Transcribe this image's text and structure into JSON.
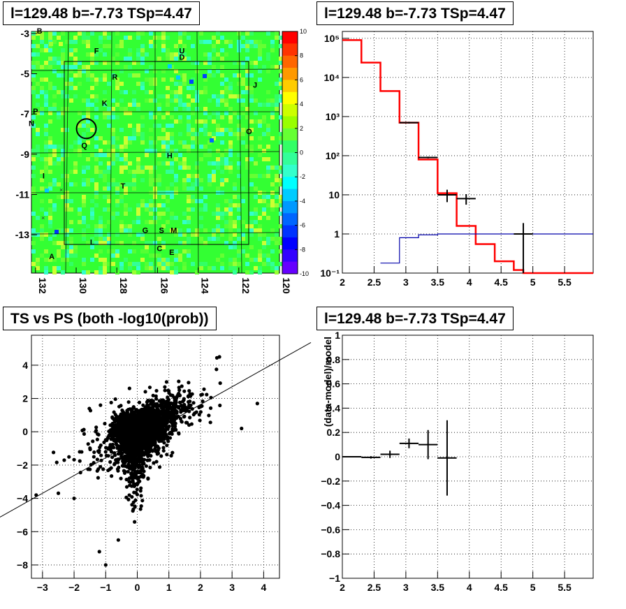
{
  "panels": {
    "skymap_title": "l=129.48 b=-7.73 TSp=4.47",
    "spectrum_title": "l=129.48 b=-7.73 TSp=4.47",
    "scatter_title": "TS vs PS (both -log10(prob))",
    "residual_title": "l=129.48 b=-7.73 TSp=4.47"
  },
  "chart_data": [
    {
      "type": "heatmap",
      "title": "l=129.48 b=-7.73 TSp=4.47",
      "x_ticks": [
        "132",
        "130",
        "128",
        "126",
        "124",
        "122",
        "120"
      ],
      "x_range": [
        132.2,
        120
      ],
      "y_ticks": [
        "-3",
        "-5",
        "-7",
        "-9",
        "-11",
        "-13"
      ],
      "y_range": [
        -14.9,
        -2.9
      ],
      "colorbar_ticks": [
        "10",
        "8",
        "6",
        "4",
        "2",
        "0",
        "-2",
        "-4",
        "-6",
        "-8",
        "-10"
      ],
      "colorbar_range": [
        -10,
        10
      ],
      "colors": {
        "background": "#33ff33",
        "outline": "#000000"
      },
      "source_labels": [
        {
          "text": "B",
          "l": 131.8,
          "b": -3.0
        },
        {
          "text": "F",
          "l": 129.0,
          "b": -4.0
        },
        {
          "text": "U",
          "l": 124.8,
          "b": -4.0
        },
        {
          "text": "D",
          "l": 124.8,
          "b": -4.3
        },
        {
          "text": "R",
          "l": 128.1,
          "b": -5.3
        },
        {
          "text": "J",
          "l": 121.2,
          "b": -5.7
        },
        {
          "text": "K",
          "l": 128.6,
          "b": -6.6
        },
        {
          "text": "P",
          "l": 132.0,
          "b": -7.0
        },
        {
          "text": "N",
          "l": 132.2,
          "b": -7.6
        },
        {
          "text": "O",
          "l": 121.5,
          "b": -8.0
        },
        {
          "text": "Q",
          "l": 129.6,
          "b": -8.7
        },
        {
          "text": "H",
          "l": 125.4,
          "b": -9.2
        },
        {
          "text": "I",
          "l": 131.6,
          "b": -10.2
        },
        {
          "text": "T",
          "l": 127.7,
          "b": -10.7
        },
        {
          "text": "G",
          "l": 126.6,
          "b": -12.9
        },
        {
          "text": "S",
          "l": 125.8,
          "b": -12.9
        },
        {
          "text": "M",
          "l": 125.2,
          "b": -12.9
        },
        {
          "text": "L",
          "l": 129.2,
          "b": -13.5
        },
        {
          "text": "C",
          "l": 125.9,
          "b": -13.8
        },
        {
          "text": "E",
          "l": 125.3,
          "b": -14.0
        },
        {
          "text": "A",
          "l": 131.2,
          "b": -14.2
        }
      ],
      "circle": {
        "l": 129.5,
        "b": -7.73
      }
    },
    {
      "type": "line",
      "title": "l=129.48 b=-7.73 TSp=4.47",
      "x_ticks": [
        "2",
        "2.5",
        "3",
        "3.5",
        "4",
        "4.5",
        "5",
        "5.5"
      ],
      "x_range": [
        2,
        5.95
      ],
      "y_scale": "log",
      "y_ticks": [
        "10⁵",
        "10⁴",
        "10³",
        "10²",
        "10",
        "1",
        "10⁻¹"
      ],
      "y_range": [
        0.1,
        150000
      ],
      "grid": true,
      "series": [
        {
          "color": "#ff0000",
          "bins": [
            [
              2.0,
              2.3,
              90000
            ],
            [
              2.3,
              2.6,
              24000
            ],
            [
              2.6,
              2.9,
              4500
            ],
            [
              2.9,
              3.2,
              700
            ],
            [
              3.2,
              3.5,
              80
            ],
            [
              3.5,
              3.8,
              11
            ],
            [
              3.8,
              4.1,
              1.6
            ],
            [
              4.1,
              4.4,
              0.55
            ],
            [
              4.4,
              4.7,
              0.2
            ],
            [
              4.7,
              4.85,
              0.12
            ],
            [
              4.85,
              5.95,
              0.1
            ]
          ]
        },
        {
          "color": "#0000aa",
          "bins": [
            [
              2.6,
              2.9,
              0.18
            ],
            [
              2.9,
              3.2,
              0.8
            ],
            [
              3.2,
              3.5,
              0.95
            ],
            [
              3.5,
              3.8,
              1.0
            ],
            [
              3.8,
              5.95,
              1.0
            ]
          ]
        },
        {
          "color": "#000000",
          "points": [
            [
              3.05,
              700,
              0.15,
              0.05
            ],
            [
              3.35,
              90,
              0.15,
              0.05
            ],
            [
              3.65,
              10,
              0.15,
              0.35
            ],
            [
              3.95,
              8,
              0.15,
              0.3
            ],
            [
              4.85,
              1.0,
              0.15,
              0.9
            ]
          ]
        }
      ]
    },
    {
      "type": "scatter",
      "title": "TS vs PS (both -log10(prob))",
      "x_ticks": [
        "−3",
        "−2",
        "−1",
        "0",
        "1",
        "2",
        "3",
        "4"
      ],
      "x_range": [
        -3.35,
        4.5
      ],
      "y_ticks": [
        "4",
        "2",
        "0",
        "−2",
        "−4",
        "−6",
        "−8"
      ],
      "y_range": [
        -8.8,
        5.8
      ],
      "grid": true,
      "n_points": 3500,
      "fit_line": {
        "slope": 1.08,
        "intercept": 0
      }
    },
    {
      "type": "line",
      "title": "l=129.48 b=-7.73 TSp=4.47",
      "ylabel": "(data-model)/model",
      "x_ticks": [
        "2",
        "2.5",
        "3",
        "3.5",
        "4",
        "4.5",
        "5",
        "5.5"
      ],
      "x_range": [
        2,
        5.95
      ],
      "y_ticks": [
        "1",
        "0.8",
        "0.6",
        "0.4",
        "0.2",
        "0",
        "−0.2",
        "−0.4",
        "−0.6",
        "−0.8",
        "−1"
      ],
      "y_range": [
        -1,
        1
      ],
      "grid": true,
      "points": [
        [
          2.15,
          0.0,
          0.15,
          0.003
        ],
        [
          2.45,
          -0.005,
          0.15,
          0.01
        ],
        [
          2.75,
          0.02,
          0.15,
          0.03
        ],
        [
          3.05,
          0.11,
          0.15,
          0.04
        ],
        [
          3.35,
          0.1,
          0.15,
          0.12
        ],
        [
          3.65,
          -0.01,
          0.15,
          0.31
        ]
      ]
    }
  ]
}
